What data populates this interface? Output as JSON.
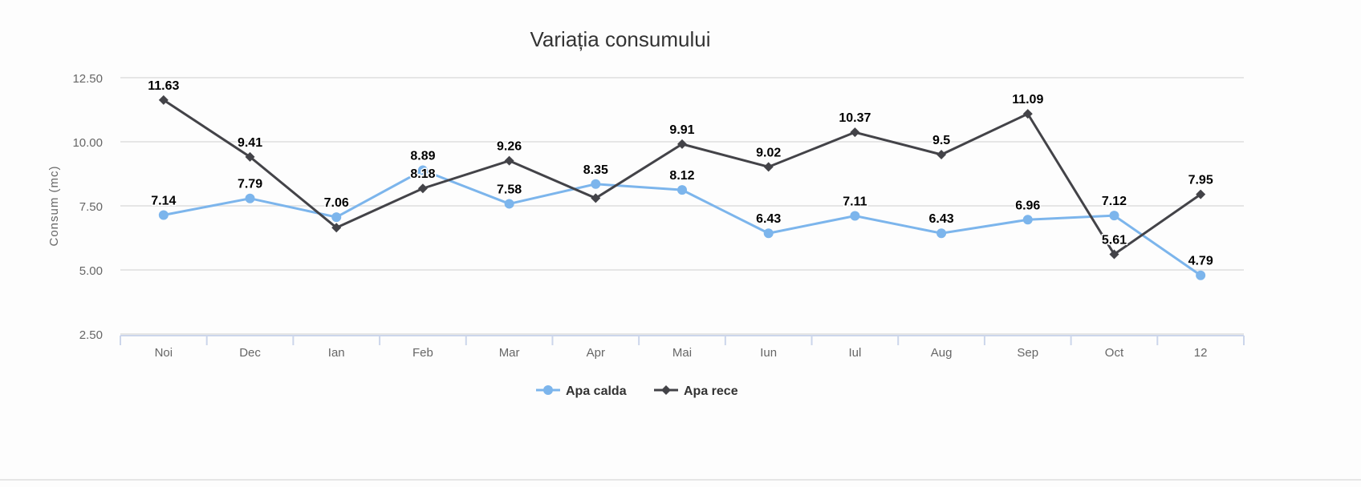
{
  "chart_data": {
    "type": "line",
    "title": "Variația consumului",
    "xlabel": "",
    "ylabel": "Consum (mc)",
    "ylim": [
      2.5,
      12.5
    ],
    "yticks": [
      "2.50",
      "5.00",
      "7.50",
      "10.00",
      "12.50"
    ],
    "ytick_values": [
      2.5,
      5,
      7.5,
      10,
      12.5
    ],
    "grid": true,
    "legend_position": "bottom",
    "categories": [
      "Noi",
      "Dec",
      "Ian",
      "Feb",
      "Mar",
      "Apr",
      "Mai",
      "Iun",
      "Iul",
      "Aug",
      "Sep",
      "Oct",
      "12"
    ],
    "series": [
      {
        "name": "Apa calda",
        "color": "#7cb5ec",
        "marker": "circle",
        "values": [
          7.14,
          7.79,
          7.06,
          8.89,
          7.58,
          8.35,
          8.12,
          6.43,
          7.11,
          6.43,
          6.96,
          7.12,
          4.79
        ],
        "labels": [
          "7.14",
          "7.79",
          "7.06",
          "8.89",
          "7.58",
          "8.35",
          "8.12",
          "6.43",
          "7.11",
          "6.43",
          "6.96",
          "7.12",
          "4.79"
        ]
      },
      {
        "name": "Apa rece",
        "color": "#434348",
        "marker": "diamond",
        "values": [
          11.63,
          9.41,
          6.65,
          8.18,
          9.26,
          7.8,
          9.91,
          9.02,
          10.37,
          9.5,
          11.09,
          5.61,
          7.95
        ],
        "labels": [
          "11.63",
          "9.41",
          null,
          "8.18",
          "9.26",
          null,
          "9.91",
          "9.02",
          "10.37",
          "9.5",
          "11.09",
          "5.61",
          "7.95"
        ]
      }
    ]
  }
}
